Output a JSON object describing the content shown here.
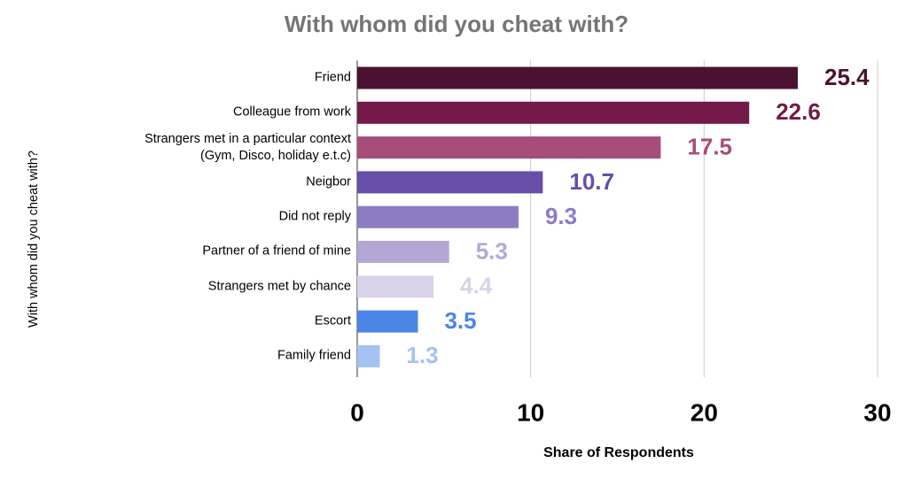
{
  "chart_data": {
    "type": "bar",
    "orientation": "horizontal",
    "title": "With whom did you cheat with?",
    "x_label": "Share of Respondents",
    "y_label": "With whom did you cheat with?",
    "categories": [
      "Friend",
      "Colleague from work",
      "Strangers met in a particular context\n(Gym, Disco, holiday e.t.c)",
      "Neigbor",
      "Did not reply",
      "Partner of a friend of mine",
      "Strangers met by chance",
      "Escort",
      "Family friend"
    ],
    "values": [
      25.4,
      22.6,
      17.5,
      10.7,
      9.3,
      5.3,
      4.4,
      3.5,
      1.3
    ],
    "colors": [
      "#4a1230",
      "#741a48",
      "#a64d79",
      "#674ea7",
      "#8e7cc3",
      "#b4a7d6",
      "#d9d2e9",
      "#4a86e8",
      "#a4c2f4"
    ],
    "xlim": [
      0,
      30
    ],
    "xticks": [
      0,
      10,
      20,
      30
    ],
    "grid": true
  }
}
